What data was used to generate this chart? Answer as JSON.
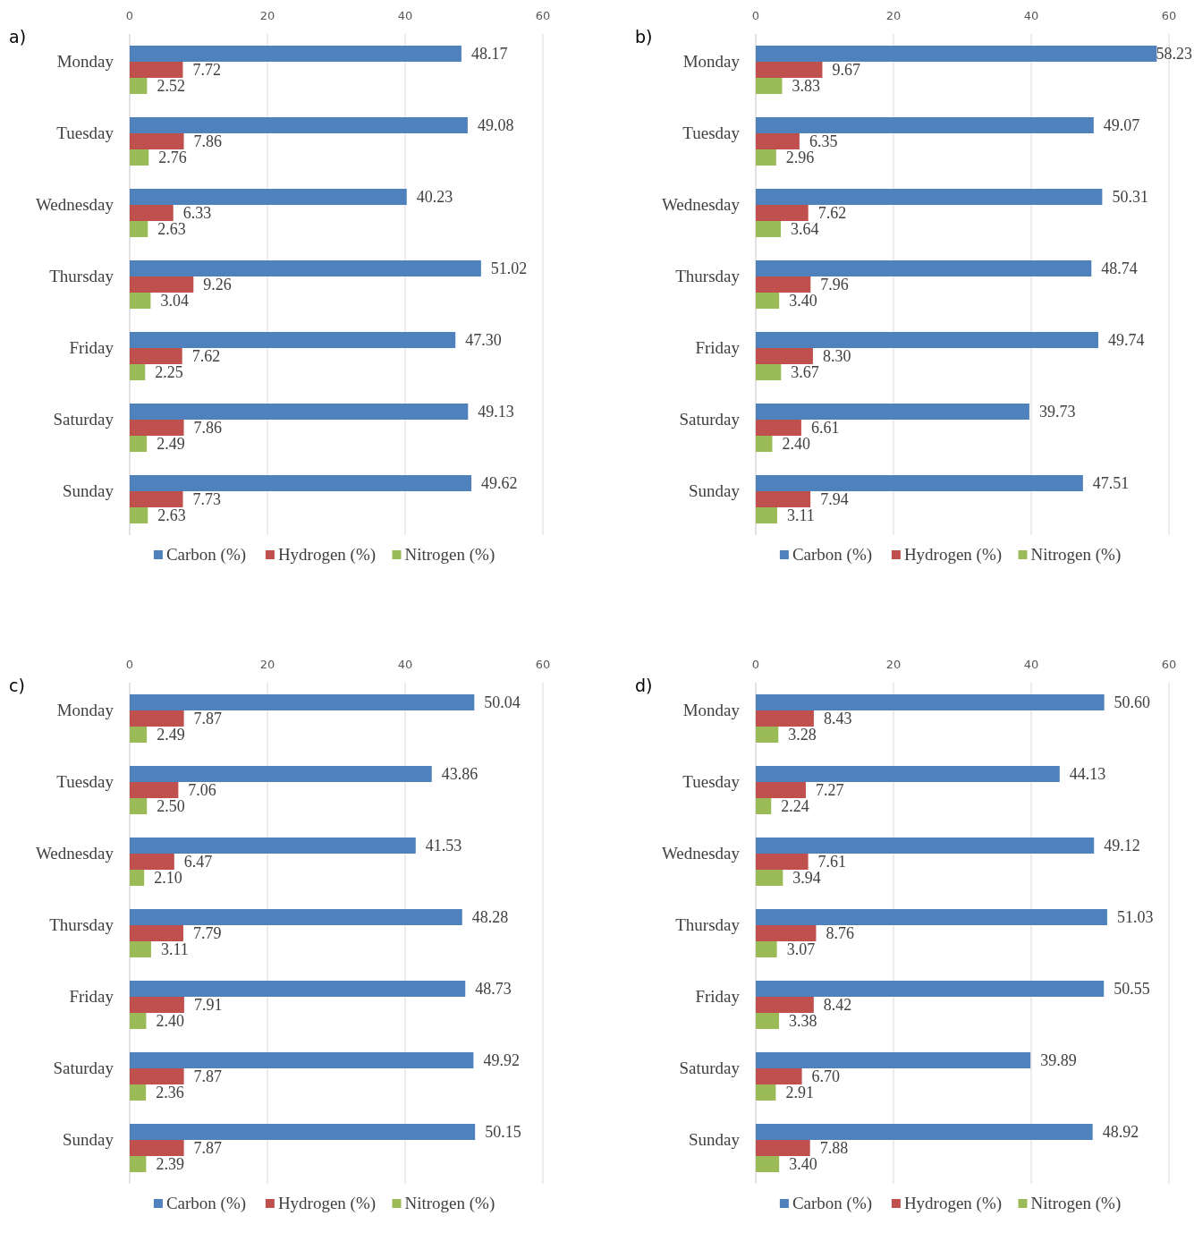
{
  "chart_data": [
    {
      "type": "bar",
      "orientation": "horizontal",
      "title": "a)",
      "categories": [
        "Monday",
        "Tuesday",
        "Wednesday",
        "Thursday",
        "Friday",
        "Saturday",
        "Sunday"
      ],
      "xlim": [
        0,
        60
      ],
      "xticks": [
        0,
        20,
        40,
        60
      ],
      "grid": "x",
      "legend": "bottom",
      "series": [
        {
          "name": "Carbon (%)",
          "color": "#4f81bd",
          "values": [
            48.17,
            49.08,
            40.23,
            51.02,
            47.3,
            49.13,
            49.62
          ],
          "value_labels": [
            "48.17",
            "49.08",
            "40.23",
            "51.02",
            "47.30",
            "49.13",
            "49.62"
          ]
        },
        {
          "name": "Hydrogen (%)",
          "color": "#c0504d",
          "values": [
            7.72,
            7.86,
            6.33,
            9.26,
            7.62,
            7.86,
            7.73
          ],
          "value_labels": [
            "7.72",
            "7.86",
            "6.33",
            "9.26",
            "7.62",
            "7.86",
            "7.73"
          ]
        },
        {
          "name": "Nitrogen (%)",
          "color": "#9bbb59",
          "values": [
            2.52,
            2.76,
            2.63,
            3.04,
            2.25,
            2.49,
            2.63
          ],
          "value_labels": [
            "2.52",
            "2.76",
            "2.63",
            "3.04",
            "2.25",
            "2.49",
            "2.63"
          ]
        }
      ]
    },
    {
      "type": "bar",
      "orientation": "horizontal",
      "title": "b)",
      "categories": [
        "Monday",
        "Tuesday",
        "Wednesday",
        "Thursday",
        "Friday",
        "Saturday",
        "Sunday"
      ],
      "xlim": [
        0,
        60
      ],
      "xticks": [
        0,
        20,
        40,
        60
      ],
      "grid": "x",
      "legend": "bottom",
      "series": [
        {
          "name": "Carbon (%)",
          "color": "#4f81bd",
          "values": [
            58.23,
            49.07,
            50.31,
            48.74,
            49.74,
            39.73,
            47.51
          ],
          "value_labels": [
            "58.23",
            "49.07",
            "50.31",
            "48.74",
            "49.74",
            "39.73",
            "47.51"
          ]
        },
        {
          "name": "Hydrogen (%)",
          "color": "#c0504d",
          "values": [
            9.67,
            6.35,
            7.62,
            7.96,
            8.3,
            6.61,
            7.94
          ],
          "value_labels": [
            "9.67",
            "6.35",
            "7.62",
            "7.96",
            "8.30",
            "6.61",
            "7.94"
          ]
        },
        {
          "name": "Nitrogen (%)",
          "color": "#9bbb59",
          "values": [
            3.83,
            2.96,
            3.64,
            3.4,
            3.67,
            2.4,
            3.11
          ],
          "value_labels": [
            "3.83",
            "2.96",
            "3.64",
            "3.40",
            "3.67",
            "2.40",
            "3.11"
          ]
        }
      ]
    },
    {
      "type": "bar",
      "orientation": "horizontal",
      "title": "c)",
      "categories": [
        "Monday",
        "Tuesday",
        "Wednesday",
        "Thursday",
        "Friday",
        "Saturday",
        "Sunday"
      ],
      "xlim": [
        0,
        60
      ],
      "xticks": [
        0,
        20,
        40,
        60
      ],
      "grid": "x",
      "legend": "bottom",
      "series": [
        {
          "name": "Carbon (%)",
          "color": "#4f81bd",
          "values": [
            50.04,
            43.86,
            41.53,
            48.28,
            48.73,
            49.92,
            50.15
          ],
          "value_labels": [
            "50.04",
            "43.86",
            "41.53",
            "48.28",
            "48.73",
            "49.92",
            "50.15"
          ]
        },
        {
          "name": "Hydrogen (%)",
          "color": "#c0504d",
          "values": [
            7.87,
            7.06,
            6.47,
            7.79,
            7.91,
            7.87,
            7.87
          ],
          "value_labels": [
            "7.87",
            "7.06",
            "6.47",
            "7.79",
            "7.91",
            "7.87",
            "7.87"
          ]
        },
        {
          "name": "Nitrogen (%)",
          "color": "#9bbb59",
          "values": [
            2.49,
            2.5,
            2.1,
            3.11,
            2.4,
            2.36,
            2.39
          ],
          "value_labels": [
            "2.49",
            "2.50",
            "2.10",
            "3.11",
            "2.40",
            "2.36",
            "2.39"
          ]
        }
      ]
    },
    {
      "type": "bar",
      "orientation": "horizontal",
      "title": "d)",
      "categories": [
        "Monday",
        "Tuesday",
        "Wednesday",
        "Thursday",
        "Friday",
        "Saturday",
        "Sunday"
      ],
      "xlim": [
        0,
        60
      ],
      "xticks": [
        0,
        20,
        40,
        60
      ],
      "grid": "x",
      "legend": "bottom",
      "series": [
        {
          "name": "Carbon (%)",
          "color": "#4f81bd",
          "values": [
            50.6,
            44.13,
            49.12,
            51.03,
            50.55,
            39.89,
            48.92
          ],
          "value_labels": [
            "50.60",
            "44.13",
            "49.12",
            "51.03",
            "50.55",
            "39.89",
            "48.92"
          ]
        },
        {
          "name": "Hydrogen (%)",
          "color": "#c0504d",
          "values": [
            8.43,
            7.27,
            7.61,
            8.76,
            8.42,
            6.7,
            7.88
          ],
          "value_labels": [
            "8.43",
            "7.27",
            "7.61",
            "8.76",
            "8.42",
            "6.70",
            "7.88"
          ]
        },
        {
          "name": "Nitrogen (%)",
          "color": "#9bbb59",
          "values": [
            3.28,
            2.24,
            3.94,
            3.07,
            3.38,
            2.91,
            3.4
          ],
          "value_labels": [
            "3.28",
            "2.24",
            "3.94",
            "3.07",
            "3.38",
            "2.91",
            "3.40"
          ]
        }
      ]
    }
  ]
}
